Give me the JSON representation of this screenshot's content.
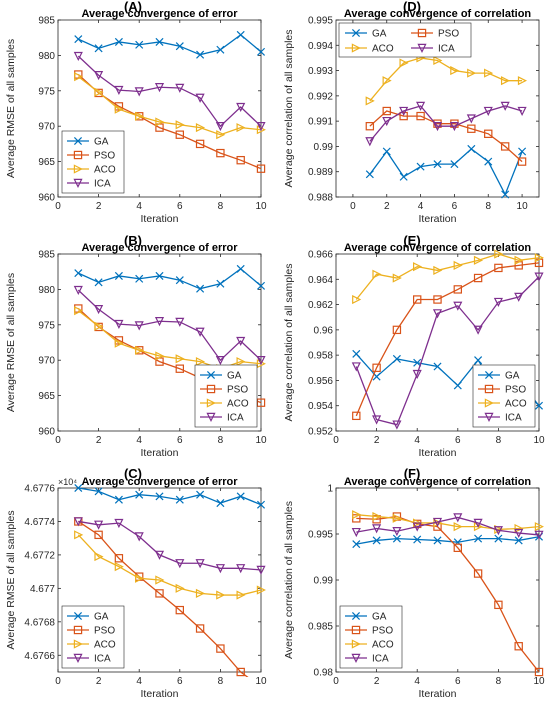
{
  "series_meta": [
    {
      "name": "GA",
      "color": "#0072BD",
      "marker": "x"
    },
    {
      "name": "PSO",
      "color": "#D95319",
      "marker": "square"
    },
    {
      "name": "ACO",
      "color": "#EDB120",
      "marker": "triangle-right"
    },
    {
      "name": "ICA",
      "color": "#7E2F8E",
      "marker": "triangle-down"
    }
  ],
  "chart_data": [
    {
      "panel_label": "(A)",
      "type": "line",
      "title": "Average convergence of error",
      "xlabel": "Iteration",
      "ylabel": "Average RMSE of all samples",
      "xlim": [
        0,
        10
      ],
      "ylim": [
        960,
        985
      ],
      "xticks": [
        0,
        2,
        4,
        6,
        8,
        10
      ],
      "yticks": [
        960,
        965,
        970,
        975,
        980,
        985
      ],
      "ytick_labels": [
        "960",
        "965",
        "970",
        "975",
        "980",
        "985"
      ],
      "exponent_label": "",
      "legend": "bottom-left",
      "x": [
        1,
        2,
        3,
        4,
        5,
        6,
        7,
        8,
        9,
        10
      ],
      "series": [
        {
          "name": "GA",
          "values": [
            982.3,
            981.0,
            981.9,
            981.5,
            981.9,
            981.3,
            980.1,
            980.8,
            982.9,
            980.5
          ]
        },
        {
          "name": "PSO",
          "values": [
            977.3,
            974.7,
            972.8,
            971.4,
            969.8,
            968.8,
            967.5,
            966.2,
            965.2,
            964.0
          ]
        },
        {
          "name": "ACO",
          "values": [
            977.0,
            974.8,
            972.4,
            971.4,
            970.6,
            970.2,
            969.8,
            968.8,
            969.8,
            969.5
          ]
        },
        {
          "name": "ICA",
          "values": [
            979.9,
            977.2,
            975.1,
            974.9,
            975.5,
            975.4,
            974.0,
            970.0,
            972.7,
            970.0
          ]
        }
      ]
    },
    {
      "panel_label": "(B)",
      "type": "line",
      "title": "Average convergence of error",
      "xlabel": "Iteration",
      "ylabel": "Average RMSE of all samples",
      "xlim": [
        0,
        10
      ],
      "ylim": [
        960,
        985
      ],
      "xticks": [
        0,
        2,
        4,
        6,
        8,
        10
      ],
      "yticks": [
        960,
        965,
        970,
        975,
        980,
        985
      ],
      "ytick_labels": [
        "960",
        "965",
        "970",
        "975",
        "980",
        "985"
      ],
      "exponent_label": "",
      "legend": "bottom-right",
      "x": [
        1,
        2,
        3,
        4,
        5,
        6,
        7,
        8,
        9,
        10
      ],
      "series": [
        {
          "name": "GA",
          "values": [
            982.3,
            981.0,
            981.9,
            981.5,
            981.9,
            981.3,
            980.1,
            980.8,
            982.9,
            980.5
          ]
        },
        {
          "name": "PSO",
          "values": [
            977.3,
            974.7,
            972.8,
            971.4,
            969.8,
            968.8,
            967.5,
            966.2,
            965.2,
            964.0
          ]
        },
        {
          "name": "ACO",
          "values": [
            977.0,
            974.8,
            972.4,
            971.4,
            970.6,
            970.2,
            969.8,
            968.8,
            969.8,
            969.5
          ]
        },
        {
          "name": "ICA",
          "values": [
            979.9,
            977.2,
            975.1,
            974.9,
            975.5,
            975.4,
            974.0,
            970.0,
            972.7,
            970.0
          ]
        }
      ]
    },
    {
      "panel_label": "(C)",
      "type": "line",
      "title": "Average convergence of error",
      "xlabel": "Iteration",
      "ylabel": "Average RMSE of all samples",
      "xlim": [
        0,
        10
      ],
      "ylim": [
        46765,
        46776
      ],
      "xticks": [
        0,
        2,
        4,
        6,
        8,
        10
      ],
      "yticks": [
        46766,
        46768,
        46770,
        46772,
        46774,
        46776
      ],
      "ytick_labels": [
        "4.6766",
        "4.6768",
        "4.677",
        "4.6772",
        "4.6774",
        "4.6776"
      ],
      "exponent_label": "×10⁴",
      "legend": "bottom-left",
      "x": [
        1,
        2,
        3,
        4,
        5,
        6,
        7,
        8,
        9,
        10
      ],
      "series": [
        {
          "name": "GA",
          "values": [
            46776.0,
            46775.8,
            46775.3,
            46775.6,
            46775.5,
            46775.3,
            46775.6,
            46775.1,
            46775.5,
            46775.0
          ]
        },
        {
          "name": "PSO",
          "values": [
            46774.0,
            46773.2,
            46771.8,
            46770.7,
            46769.7,
            46768.7,
            46767.6,
            46766.4,
            46765.0,
            46764.1
          ]
        },
        {
          "name": "ACO",
          "values": [
            46773.2,
            46771.9,
            46771.3,
            46770.6,
            46770.5,
            46770.0,
            46769.7,
            46769.6,
            46769.6,
            46769.9
          ]
        },
        {
          "name": "ICA",
          "values": [
            46774.0,
            46773.8,
            46773.9,
            46773.1,
            46772.0,
            46771.5,
            46771.5,
            46771.2,
            46771.2,
            46771.1
          ]
        }
      ]
    },
    {
      "panel_label": "(D)",
      "type": "line",
      "title": "Average convergence of correlation",
      "xlabel": "Iteration",
      "ylabel": "Average correlation of all samples",
      "xlim": [
        -1,
        11
      ],
      "ylim": [
        0.988,
        0.995
      ],
      "xticks": [
        0,
        2,
        4,
        6,
        8,
        10
      ],
      "yticks": [
        0.988,
        0.989,
        0.99,
        0.991,
        0.992,
        0.993,
        0.994,
        0.995
      ],
      "ytick_labels": [
        "0.988",
        "0.989",
        "0.99",
        "0.991",
        "0.992",
        "0.993",
        "0.994",
        "0.995"
      ],
      "exponent_label": "",
      "legend": "top-2col",
      "x": [
        1,
        2,
        3,
        4,
        5,
        6,
        7,
        8,
        9,
        10
      ],
      "series": [
        {
          "name": "GA",
          "values": [
            0.9889,
            0.9898,
            0.9888,
            0.9892,
            0.9893,
            0.9893,
            0.9899,
            0.9894,
            0.9881,
            0.9898
          ]
        },
        {
          "name": "PSO",
          "values": [
            0.9908,
            0.9914,
            0.9912,
            0.9912,
            0.9909,
            0.9909,
            0.9907,
            0.9905,
            0.99,
            0.9894
          ]
        },
        {
          "name": "ACO",
          "values": [
            0.9918,
            0.9926,
            0.9933,
            0.9935,
            0.9934,
            0.993,
            0.9929,
            0.9929,
            0.9926,
            0.9926
          ]
        },
        {
          "name": "ICA",
          "values": [
            0.9902,
            0.991,
            0.9914,
            0.9916,
            0.9908,
            0.9908,
            0.9911,
            0.9914,
            0.9916,
            0.9914
          ]
        }
      ]
    },
    {
      "panel_label": "(E)",
      "type": "line",
      "title": "Average convergence of correlation",
      "xlabel": "Iteration",
      "ylabel": "Average correlation of all samples",
      "xlim": [
        0,
        10
      ],
      "ylim": [
        0.952,
        0.966
      ],
      "xticks": [
        0,
        2,
        4,
        6,
        8,
        10
      ],
      "yticks": [
        0.952,
        0.954,
        0.956,
        0.958,
        0.96,
        0.962,
        0.964,
        0.966
      ],
      "ytick_labels": [
        "0.952",
        "0.954",
        "0.956",
        "0.958",
        "0.96",
        "0.962",
        "0.964",
        "0.966"
      ],
      "exponent_label": "",
      "legend": "bottom-right",
      "x": [
        1,
        2,
        3,
        4,
        5,
        6,
        7,
        8,
        9,
        10
      ],
      "series": [
        {
          "name": "GA",
          "values": [
            0.9581,
            0.9563,
            0.9577,
            0.9574,
            0.9571,
            0.9556,
            0.9576,
            0.9551,
            0.956,
            0.954
          ]
        },
        {
          "name": "PSO",
          "values": [
            0.9532,
            0.957,
            0.96,
            0.9624,
            0.9624,
            0.9632,
            0.9641,
            0.9649,
            0.9651,
            0.9653
          ]
        },
        {
          "name": "ACO",
          "values": [
            0.9624,
            0.9644,
            0.9641,
            0.965,
            0.9647,
            0.9651,
            0.9655,
            0.966,
            0.9655,
            0.9657
          ]
        },
        {
          "name": "ICA",
          "values": [
            0.9571,
            0.9529,
            0.9525,
            0.9565,
            0.9613,
            0.9619,
            0.96,
            0.9622,
            0.9626,
            0.9642
          ]
        }
      ]
    },
    {
      "panel_label": "(F)",
      "type": "line",
      "title": "Average convergence of correlation",
      "xlabel": "Iteration",
      "ylabel": "Average correlation of all samples",
      "xlim": [
        0,
        10
      ],
      "ylim": [
        0.98,
        1.0
      ],
      "xticks": [
        0,
        2,
        4,
        6,
        8,
        10
      ],
      "yticks": [
        0.98,
        0.985,
        0.99,
        0.995,
        1.0
      ],
      "ytick_labels": [
        "0.98",
        "0.985",
        "0.99",
        "0.995",
        "1"
      ],
      "exponent_label": "",
      "legend": "bottom-left",
      "x": [
        1,
        2,
        3,
        4,
        5,
        6,
        7,
        8,
        9,
        10
      ],
      "series": [
        {
          "name": "GA",
          "values": [
            0.9939,
            0.9943,
            0.9945,
            0.9944,
            0.9943,
            0.9941,
            0.9945,
            0.9945,
            0.9943,
            0.9947
          ]
        },
        {
          "name": "PSO",
          "values": [
            0.9967,
            0.9966,
            0.9969,
            0.9961,
            0.9958,
            0.9935,
            0.9907,
            0.9873,
            0.9828,
            0.98
          ]
        },
        {
          "name": "ACO",
          "values": [
            0.9971,
            0.9969,
            0.9967,
            0.9962,
            0.9962,
            0.9958,
            0.9958,
            0.9955,
            0.9956,
            0.9958
          ]
        },
        {
          "name": "ICA",
          "values": [
            0.9952,
            0.9956,
            0.9953,
            0.9958,
            0.9963,
            0.9968,
            0.9962,
            0.9954,
            0.9951,
            0.9949
          ]
        }
      ]
    }
  ]
}
